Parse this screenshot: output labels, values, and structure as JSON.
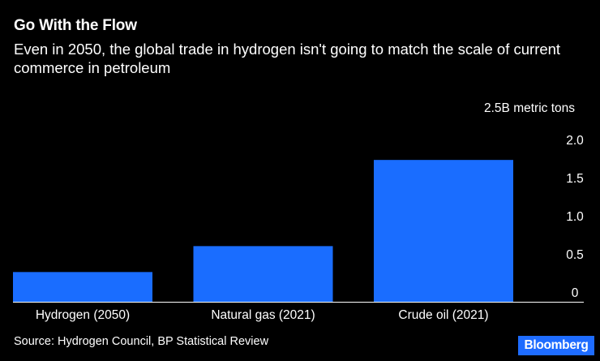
{
  "header": {
    "title": "Go With the Flow",
    "subtitle": "Even in 2050, the global trade in hydrogen isn't going to match the scale of current commerce in petroleum"
  },
  "chart_data": {
    "type": "bar",
    "categories": [
      "Hydrogen (2050)",
      "Natural gas (2021)",
      "Crude oil (2021)"
    ],
    "values": [
      0.39,
      0.73,
      1.86
    ],
    "unit_label": "2.5B metric tons",
    "yticks": [
      {
        "value": 2.0,
        "label": "2.0"
      },
      {
        "value": 1.5,
        "label": "1.5"
      },
      {
        "value": 1.0,
        "label": "1.0"
      },
      {
        "value": 0.5,
        "label": "0.5"
      },
      {
        "value": 0,
        "label": "0"
      }
    ],
    "ylim": [
      0,
      2.5
    ],
    "grid": false,
    "bar_color": "#1a6dff"
  },
  "footer": {
    "source": "Source: Hydrogen Council, BP Statistical Review",
    "brand": "Bloomberg"
  },
  "colors": {
    "background": "#000000",
    "text": "#ffffff",
    "bar": "#1a6dff",
    "brand_badge": "#1e6cff"
  }
}
